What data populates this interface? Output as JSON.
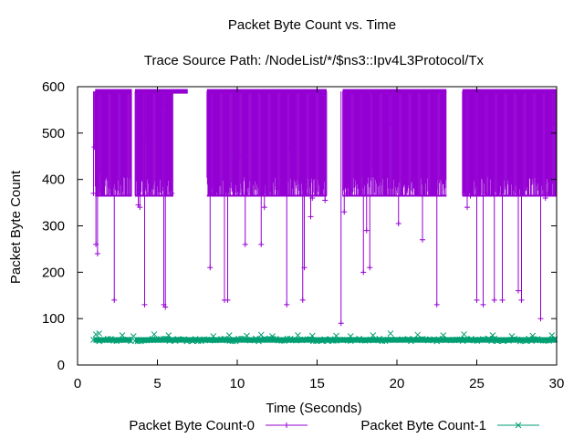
{
  "chart_data": {
    "type": "scatter",
    "title": "Packet Byte Count vs. Time",
    "subtitle": "Trace Source Path: /NodeList/*/$ns3::Ipv4L3Protocol/Tx",
    "xlabel": "Time (Seconds)",
    "ylabel": "Packet Byte Count",
    "xlim": [
      0,
      30
    ],
    "ylim": [
      0,
      600
    ],
    "xticks": [
      0,
      5,
      10,
      15,
      20,
      25,
      30
    ],
    "yticks": [
      0,
      100,
      200,
      300,
      400,
      500,
      600
    ],
    "grid": false,
    "legend_position": "bottom",
    "series": [
      {
        "name": "Packet Byte Count-0",
        "marker": "plus",
        "style": "impulses",
        "color": "#9400d3",
        "sustained_value": 590,
        "busy_intervals": [
          [
            1.1,
            3.4
          ],
          [
            3.6,
            6.9
          ],
          [
            8.1,
            15.6
          ],
          [
            16.6,
            23.1
          ],
          [
            24.1,
            30.0
          ]
        ],
        "low_band": [
          365,
          590
        ],
        "low_band_intervals": [
          [
            1.1,
            3.4
          ],
          [
            3.6,
            6.0
          ],
          [
            8.1,
            15.6
          ],
          [
            16.6,
            23.1
          ],
          [
            24.1,
            30.0
          ]
        ],
        "x": [
          1.0,
          1.05,
          1.15,
          1.25,
          1.4,
          2.3,
          2.4,
          3.8,
          3.9,
          4.2,
          4.3,
          4.5,
          5.3,
          5.4,
          5.5,
          5.6,
          5.8,
          5.9,
          8.3,
          8.4,
          9.2,
          9.4,
          9.8,
          10.1,
          10.5,
          10.6,
          11.5,
          11.7,
          12.5,
          13.1,
          13.3,
          14.1,
          14.2,
          14.3,
          14.6,
          14.7,
          15.3,
          15.5,
          16.5,
          16.7,
          16.9,
          17.8,
          17.9,
          18.1,
          18.3,
          18.5,
          18.7,
          19.6,
          20.1,
          21.2,
          21.6,
          22.5,
          22.8,
          24.4,
          24.6,
          25.0,
          25.4,
          25.6,
          26.1,
          26.6,
          27.6,
          27.8,
          28.4,
          29.0,
          29.3,
          29.5,
          29.8
        ],
        "y": [
          370,
          470,
          260,
          240,
          420,
          140,
          445,
          345,
          340,
          130,
          490,
          370,
          560,
          130,
          125,
          400,
          420,
          370,
          210,
          370,
          140,
          140,
          430,
          450,
          260,
          370,
          260,
          340,
          380,
          130,
          470,
          140,
          210,
          370,
          320,
          360,
          460,
          355,
          90,
          330,
          370,
          410,
          200,
          290,
          210,
          430,
          470,
          520,
          305,
          410,
          270,
          130,
          450,
          340,
          365,
          140,
          130,
          370,
          140,
          140,
          160,
          140,
          500,
          100,
          360,
          370,
          520
        ]
      },
      {
        "name": "Packet Byte Count-1",
        "marker": "x",
        "style": "points",
        "color": "#009e73",
        "band": [
          48,
          60
        ],
        "busy_intervals": [
          [
            1.0,
            3.4
          ],
          [
            3.6,
            30.0
          ]
        ],
        "x": [
          1.15,
          1.35,
          2.8,
          3.5,
          4.8,
          5.7,
          8.5,
          9.5,
          10.6,
          11.5,
          12.2,
          13.8,
          14.7,
          16.2,
          17.1,
          18.5,
          19.6,
          21.3,
          22.9,
          24.2,
          26.0,
          27.2,
          28.5,
          29.7
        ],
        "y": [
          66,
          68,
          64,
          62,
          66,
          64,
          62,
          64,
          63,
          65,
          62,
          64,
          63,
          63,
          62,
          64,
          68,
          65,
          64,
          66,
          64,
          62,
          63,
          64
        ]
      }
    ]
  }
}
